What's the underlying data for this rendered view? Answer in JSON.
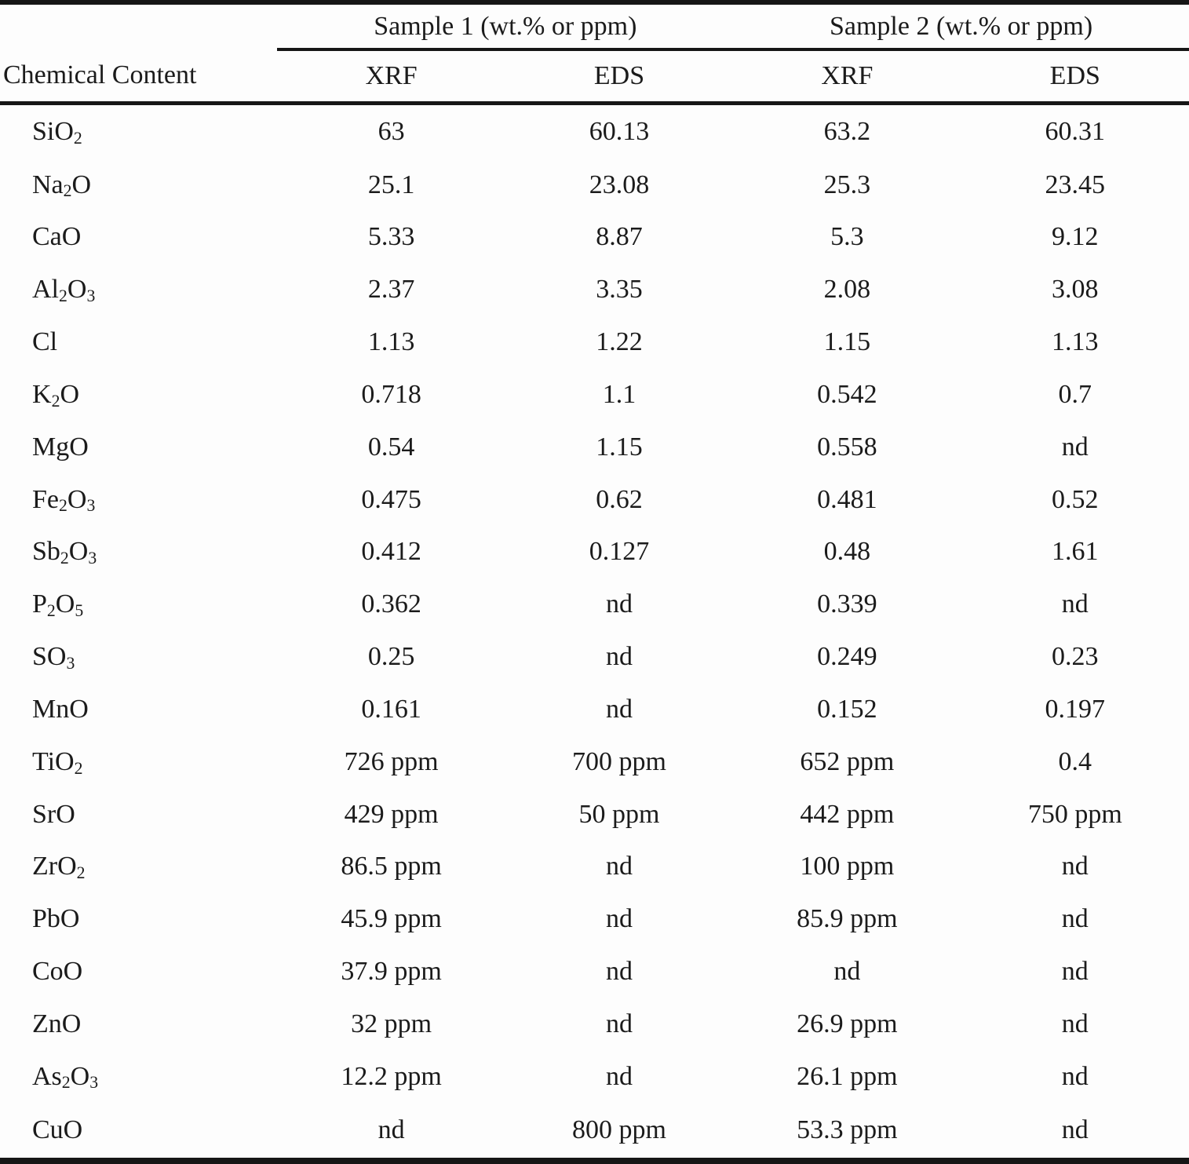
{
  "table": {
    "col1_header": "Chemical Content",
    "group_headers": [
      "Sample 1 (wt.% or ppm)",
      "Sample 2 (wt.% or ppm)"
    ],
    "sub_headers": [
      "XRF",
      "EDS",
      "XRF",
      "EDS"
    ],
    "rows": [
      {
        "formula": "SiO_2",
        "values": [
          "63",
          "60.13",
          "63.2",
          "60.31"
        ]
      },
      {
        "formula": "Na_2O",
        "values": [
          "25.1",
          "23.08",
          "25.3",
          "23.45"
        ]
      },
      {
        "formula": "CaO",
        "values": [
          "5.33",
          "8.87",
          "5.3",
          "9.12"
        ]
      },
      {
        "formula": "Al_2O_3",
        "values": [
          "2.37",
          "3.35",
          "2.08",
          "3.08"
        ]
      },
      {
        "formula": "Cl",
        "values": [
          "1.13",
          "1.22",
          "1.15",
          "1.13"
        ]
      },
      {
        "formula": "K_2O",
        "values": [
          "0.718",
          "1.1",
          "0.542",
          "0.7"
        ]
      },
      {
        "formula": "MgO",
        "values": [
          "0.54",
          "1.15",
          "0.558",
          "nd"
        ]
      },
      {
        "formula": "Fe_2O_3",
        "values": [
          "0.475",
          "0.62",
          "0.481",
          "0.52"
        ]
      },
      {
        "formula": "Sb_2O_3",
        "values": [
          "0.412",
          "0.127",
          "0.48",
          "1.61"
        ]
      },
      {
        "formula": "P_2O_5",
        "values": [
          "0.362",
          "nd",
          "0.339",
          "nd"
        ]
      },
      {
        "formula": "SO_3",
        "values": [
          "0.25",
          "nd",
          "0.249",
          "0.23"
        ]
      },
      {
        "formula": "MnO",
        "values": [
          "0.161",
          "nd",
          "0.152",
          "0.197"
        ]
      },
      {
        "formula": "TiO_2",
        "values": [
          "726 ppm",
          "700 ppm",
          "652 ppm",
          "0.4"
        ]
      },
      {
        "formula": "SrO",
        "values": [
          "429 ppm",
          "50 ppm",
          "442 ppm",
          "750 ppm"
        ]
      },
      {
        "formula": "ZrO_2",
        "values": [
          "86.5 ppm",
          "nd",
          "100 ppm",
          "nd"
        ]
      },
      {
        "formula": "PbO",
        "values": [
          "45.9 ppm",
          "nd",
          "85.9 ppm",
          "nd"
        ]
      },
      {
        "formula": "CoO",
        "values": [
          "37.9 ppm",
          "nd",
          "nd",
          "nd"
        ]
      },
      {
        "formula": "ZnO",
        "values": [
          "32 ppm",
          "nd",
          "26.9 ppm",
          "nd"
        ]
      },
      {
        "formula": "As_2O_3",
        "values": [
          "12.2 ppm",
          "nd",
          "26.1 ppm",
          "nd"
        ]
      },
      {
        "formula": "CuO",
        "values": [
          "nd",
          "800 ppm",
          "53.3 ppm",
          "nd"
        ]
      }
    ],
    "colors": {
      "text": "#1b1b1b",
      "rule": "#161616",
      "background": "#fdfdfd"
    }
  }
}
